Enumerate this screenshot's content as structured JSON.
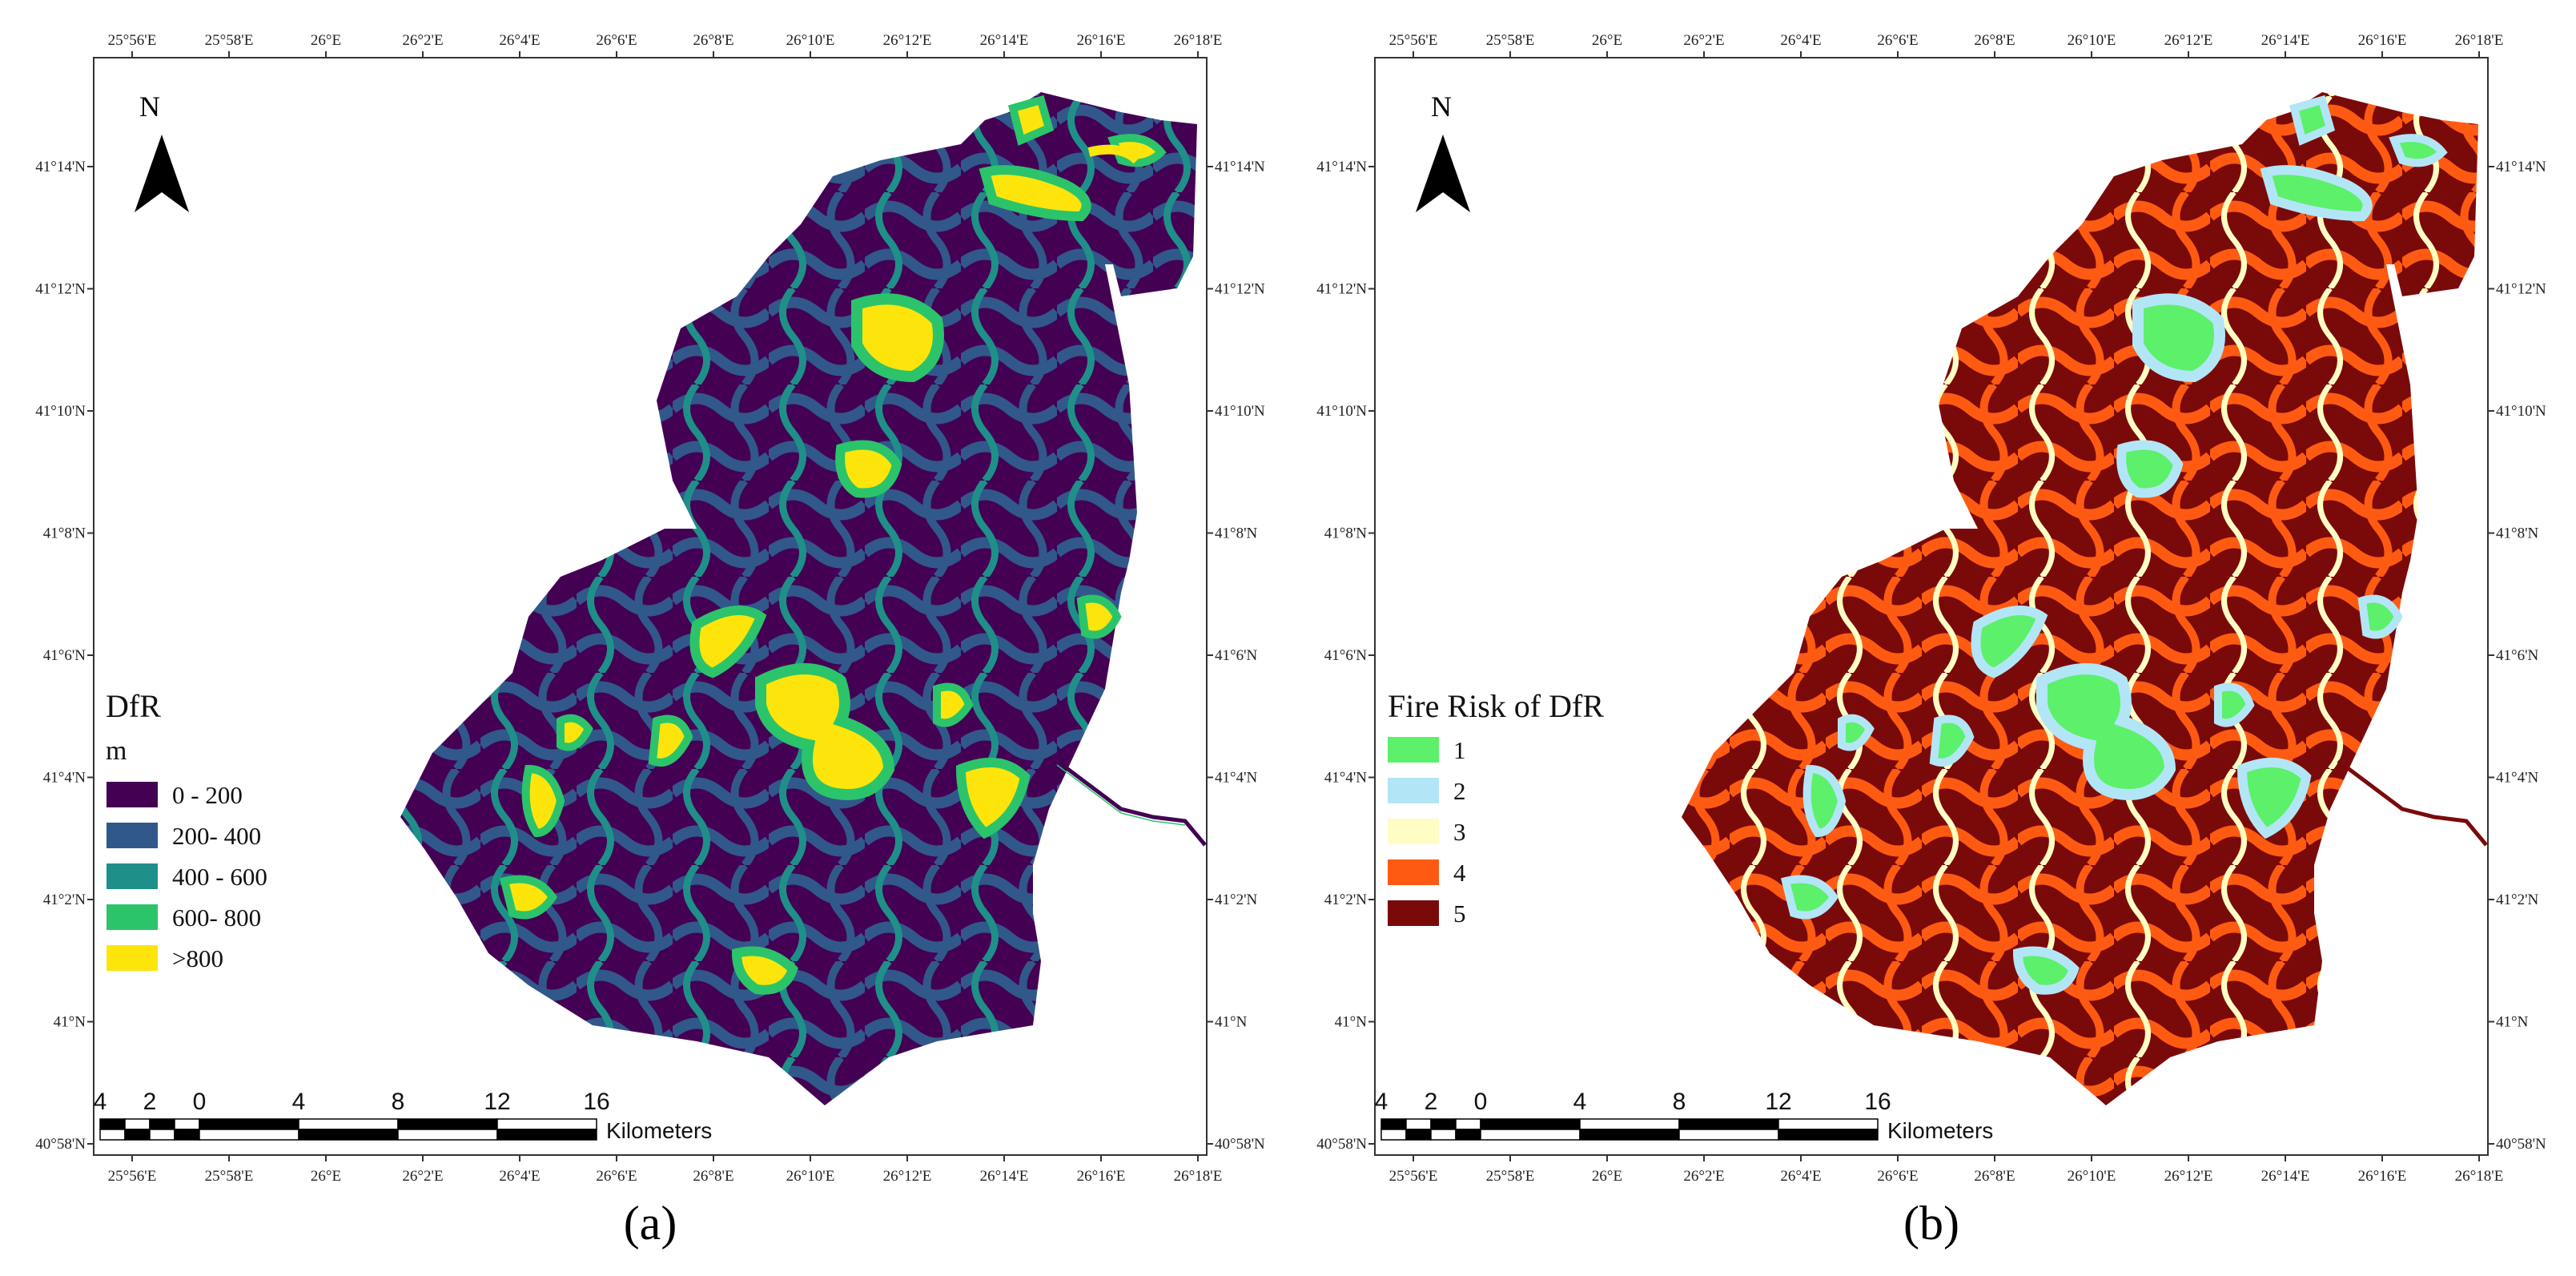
{
  "panels": [
    {
      "id": "a",
      "caption": "(a)",
      "legend_title": "DfR",
      "legend_subtitle": "m",
      "legend_items": [
        {
          "label": "0 - 200",
          "color": "#440154"
        },
        {
          "label": "200- 400",
          "color": "#31588a"
        },
        {
          "label": "400 - 600",
          "color": "#1f8f8a"
        },
        {
          "label": "600- 800",
          "color": "#2bc46a"
        },
        {
          "label": ">800",
          "color": "#fde50c"
        }
      ]
    },
    {
      "id": "b",
      "caption": "(b)",
      "legend_title": "Fire Risk of DfR",
      "legend_subtitle": "",
      "legend_items": [
        {
          "label": "1",
          "color": "#5df06b"
        },
        {
          "label": "2",
          "color": "#b2e6f7"
        },
        {
          "label": "3",
          "color": "#fffdc4"
        },
        {
          "label": "4",
          "color": "#ff5a12"
        },
        {
          "label": "5",
          "color": "#7a0a0a"
        }
      ]
    }
  ],
  "x_ticks": [
    "25°56'E",
    "25°58'E",
    "26°E",
    "26°2'E",
    "26°4'E",
    "26°6'E",
    "26°8'E",
    "26°10'E",
    "26°12'E",
    "26°14'E",
    "26°16'E",
    "26°18'E"
  ],
  "y_ticks": [
    "41°14'N",
    "41°12'N",
    "41°10'N",
    "41°8'N",
    "41°6'N",
    "41°4'N",
    "41°2'N",
    "41°N",
    "40°58'N"
  ],
  "north_label": "N",
  "scalebar_numbers": [
    "4",
    "2",
    "0",
    "4",
    "8",
    "12",
    "16"
  ],
  "scalebar_unit": "Kilometers"
}
